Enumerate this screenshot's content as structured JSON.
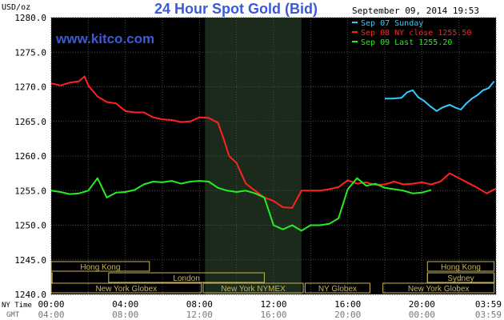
{
  "chart_data": {
    "type": "line",
    "title": "24 Hour Spot Gold (Bid)",
    "source": "www.kitco.com",
    "timestamp": "September 09, 2014 19:53",
    "ylabel": "USD/oz",
    "ylim": [
      1240,
      1280
    ],
    "y_ticks": [
      "1280.0",
      "1275.0",
      "1270.0",
      "1265.0",
      "1260.0",
      "1255.0",
      "1250.0",
      "1245.0",
      "1240.0"
    ],
    "y_tick_values": [
      1280,
      1275,
      1270,
      1265,
      1260,
      1255,
      1250,
      1245,
      1240
    ],
    "xlim": [
      0,
      24
    ],
    "x_row1_label": "NY Time",
    "x_row2_label": "GMT",
    "x_ticks_ny": [
      "00:00",
      "04:00",
      "08:00",
      "12:00",
      "16:00",
      "20:00",
      "03:59"
    ],
    "x_ticks_gmt": [
      "04:00",
      "08:00",
      "12:00",
      "16:00",
      "20:00",
      "00:00",
      "03:59"
    ],
    "x_tick_hours": [
      0,
      4,
      8,
      12,
      16,
      20,
      23.98
    ],
    "grid": true,
    "background": "#000000",
    "shaded_region": {
      "x_start": 8.3,
      "x_end": 13.5
    },
    "legend": [
      {
        "name": "Sep 07 Sunday",
        "color": "#33ccff"
      },
      {
        "name": "Sep 08 NY close 1255.50",
        "color": "#ff2222"
      },
      {
        "name": "Sep 09 Last 1255.20",
        "color": "#22ee22"
      }
    ],
    "series": [
      {
        "name": "Sep 08 NY close 1255.50",
        "color": "#ff2222",
        "x": [
          0,
          0.5,
          1,
          1.5,
          1.8,
          2,
          2.5,
          3,
          3.5,
          4,
          4.5,
          5,
          5.5,
          6,
          6.5,
          7,
          7.5,
          8,
          8.5,
          9,
          9.3,
          9.6,
          10,
          10.5,
          11,
          11.5,
          12,
          12.5,
          13,
          13.5,
          14,
          14.5,
          15,
          15.5,
          16,
          16.5,
          17,
          17.5,
          18,
          18.5,
          19,
          19.5,
          20,
          20.5,
          21,
          21.5,
          22,
          22.5,
          23,
          23.5,
          24
        ],
        "y": [
          1270.5,
          1270.2,
          1270.6,
          1270.8,
          1271.5,
          1270.2,
          1268.6,
          1267.8,
          1267.6,
          1266.5,
          1266.3,
          1266.3,
          1265.6,
          1265.3,
          1265.2,
          1264.9,
          1265.0,
          1265.6,
          1265.5,
          1264.8,
          1262.5,
          1260.0,
          1259.0,
          1256.0,
          1255.0,
          1254.0,
          1253.5,
          1252.6,
          1252.5,
          1255.0,
          1255.0,
          1255.0,
          1255.2,
          1255.5,
          1256.5,
          1256.0,
          1256.2,
          1255.8,
          1255.9,
          1256.3,
          1255.9,
          1256.0,
          1256.2,
          1255.9,
          1256.3,
          1257.5,
          1256.8,
          1256.1,
          1255.4,
          1254.6,
          1255.3
        ]
      },
      {
        "name": "Sep 09 Last 1255.20",
        "color": "#22ee22",
        "x": [
          0,
          0.5,
          1,
          1.5,
          2,
          2.5,
          3,
          3.5,
          4,
          4.5,
          5,
          5.5,
          6,
          6.5,
          7,
          7.5,
          8,
          8.5,
          9,
          9.5,
          10,
          10.5,
          11,
          11.5,
          12,
          12.5,
          13,
          13.5,
          14,
          14.5,
          15,
          15.5,
          16,
          16.5,
          17,
          17.5,
          18,
          18.5,
          19,
          19.5,
          20,
          20.5
        ],
        "y": [
          1255.0,
          1254.8,
          1254.5,
          1254.6,
          1255.0,
          1256.8,
          1254.0,
          1254.7,
          1254.8,
          1255.1,
          1255.9,
          1256.3,
          1256.2,
          1256.4,
          1256.0,
          1256.3,
          1256.4,
          1256.3,
          1255.4,
          1255.0,
          1254.8,
          1255.0,
          1254.6,
          1254.0,
          1250.0,
          1249.4,
          1250.0,
          1249.2,
          1250.0,
          1250.0,
          1250.2,
          1251.0,
          1255.2,
          1256.8,
          1255.7,
          1256.0,
          1255.4,
          1255.2,
          1255.0,
          1254.6,
          1254.7,
          1255.1
        ]
      },
      {
        "name": "Sep 07 Sunday",
        "color": "#33ccff",
        "x": [
          18.0,
          18.4,
          18.9,
          19.2,
          19.5,
          19.8,
          20.1,
          20.4,
          20.8,
          21.1,
          21.5,
          21.8,
          22.1,
          22.4,
          22.7,
          23.0,
          23.3,
          23.6,
          23.9
        ],
        "y": [
          1268.3,
          1268.3,
          1268.4,
          1269.2,
          1269.5,
          1268.5,
          1268.0,
          1267.3,
          1266.5,
          1267.0,
          1267.4,
          1267.0,
          1266.7,
          1267.6,
          1268.3,
          1268.8,
          1269.5,
          1269.8,
          1270.8
        ]
      }
    ],
    "sessions": [
      {
        "label": "Hong Kong",
        "row": 0,
        "segments": [
          {
            "start": 0,
            "end": 5.3,
            "text": true
          },
          {
            "start": 20.3,
            "end": 23.9,
            "text": true
          }
        ]
      },
      {
        "label": "London",
        "row": 1,
        "segments": [
          {
            "start": 0,
            "end": 0.05,
            "text": false
          },
          {
            "start": 3.1,
            "end": 11.5,
            "text": true
          },
          {
            "start": 20.3,
            "end": 23.9,
            "text": false
          }
        ]
      },
      {
        "label": "Sydney",
        "row": 1,
        "segments": [
          {
            "start": 20.3,
            "end": 23.9,
            "text": true
          }
        ]
      },
      {
        "label": "New York Globex",
        "row": 2,
        "segments": [
          {
            "start": 0,
            "end": 8.1,
            "text": true
          },
          {
            "start": 17.9,
            "end": 23.9,
            "text": true
          }
        ]
      },
      {
        "label": "New York NYMEX",
        "row": 2,
        "segments": [
          {
            "start": 8.2,
            "end": 13.6,
            "text": true
          }
        ]
      },
      {
        "label": "NY Globex",
        "row": 2,
        "segments": [
          {
            "start": 13.7,
            "end": 17.2,
            "text": true
          }
        ]
      }
    ]
  }
}
